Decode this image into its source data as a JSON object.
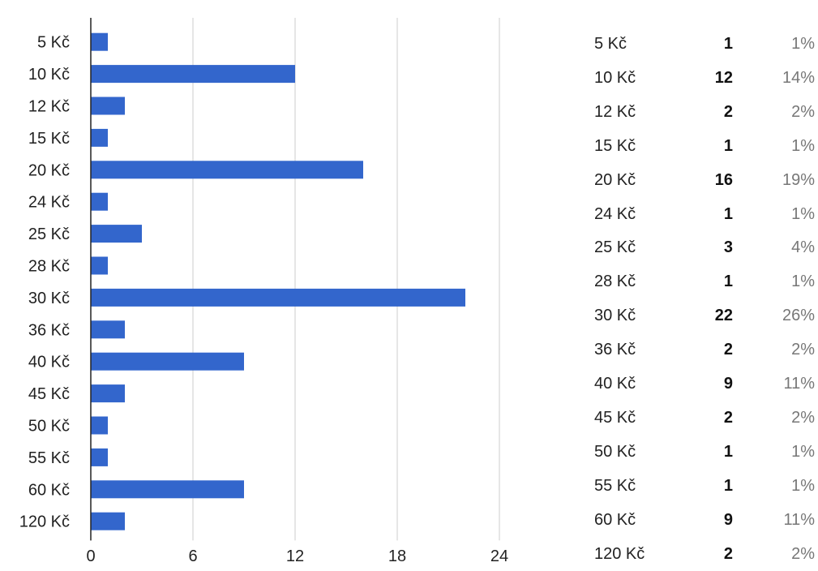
{
  "colors": {
    "bar": "#3366cc",
    "grid": "#cccccc",
    "axis": "#222222",
    "text": "#222222",
    "percent": "#777777"
  },
  "chart_data": {
    "type": "bar",
    "orientation": "horizontal",
    "categories": [
      "5 Kč",
      "10 Kč",
      "12 Kč",
      "15 Kč",
      "20 Kč",
      "24 Kč",
      "25 Kč",
      "28 Kč",
      "30 Kč",
      "36 Kč",
      "40 Kč",
      "45 Kč",
      "50 Kč",
      "55 Kč",
      "60 Kč",
      "120 Kč"
    ],
    "values": [
      1,
      12,
      2,
      1,
      16,
      1,
      3,
      1,
      22,
      2,
      9,
      2,
      1,
      1,
      9,
      2
    ],
    "xticks": [
      0,
      6,
      12,
      18,
      24
    ],
    "xlim": [
      0,
      24
    ],
    "grid": true,
    "legend": "none"
  },
  "summary": {
    "rows": [
      {
        "label": "5 Kč",
        "count": "1",
        "percent": "1%"
      },
      {
        "label": "10 Kč",
        "count": "12",
        "percent": "14%"
      },
      {
        "label": "12 Kč",
        "count": "2",
        "percent": "2%"
      },
      {
        "label": "15 Kč",
        "count": "1",
        "percent": "1%"
      },
      {
        "label": "20 Kč",
        "count": "16",
        "percent": "19%"
      },
      {
        "label": "24 Kč",
        "count": "1",
        "percent": "1%"
      },
      {
        "label": "25 Kč",
        "count": "3",
        "percent": "4%"
      },
      {
        "label": "28 Kč",
        "count": "1",
        "percent": "1%"
      },
      {
        "label": "30 Kč",
        "count": "22",
        "percent": "26%"
      },
      {
        "label": "36 Kč",
        "count": "2",
        "percent": "2%"
      },
      {
        "label": "40 Kč",
        "count": "9",
        "percent": "11%"
      },
      {
        "label": "45 Kč",
        "count": "2",
        "percent": "2%"
      },
      {
        "label": "50 Kč",
        "count": "1",
        "percent": "1%"
      },
      {
        "label": "55 Kč",
        "count": "1",
        "percent": "1%"
      },
      {
        "label": "60 Kč",
        "count": "9",
        "percent": "11%"
      },
      {
        "label": "120 Kč",
        "count": "2",
        "percent": "2%"
      }
    ]
  }
}
